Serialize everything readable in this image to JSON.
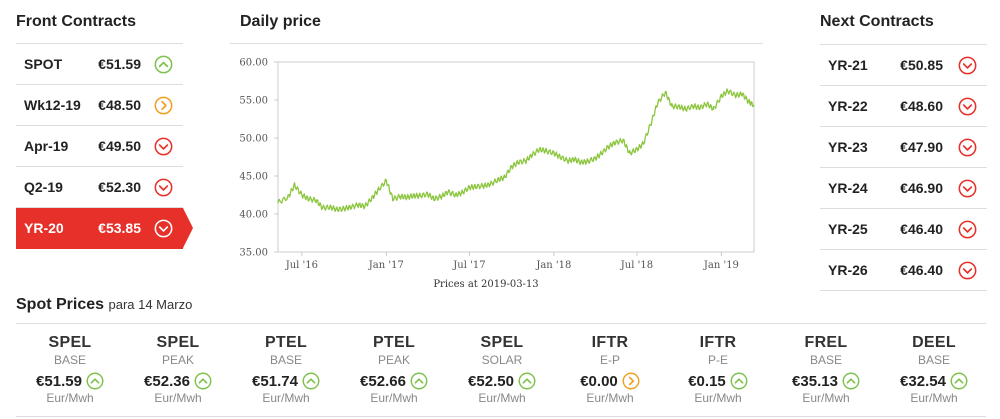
{
  "front": {
    "title": "Front Contracts",
    "items": [
      {
        "name": "SPOT",
        "price": "€51.59",
        "trend": "up-icon"
      },
      {
        "name": "Wk12-19",
        "price": "€48.50",
        "trend": "right-icon"
      },
      {
        "name": "Apr-19",
        "price": "€49.50",
        "trend": "down-icon"
      },
      {
        "name": "Q2-19",
        "price": "€52.30",
        "trend": "down-icon"
      },
      {
        "name": "YR-20",
        "price": "€53.85",
        "trend": "down-icon",
        "active": true
      }
    ]
  },
  "daily": {
    "title": "Daily price"
  },
  "next": {
    "title": "Next Contracts",
    "items": [
      {
        "name": "YR-21",
        "price": "€50.85",
        "trend": "down-icon"
      },
      {
        "name": "YR-22",
        "price": "€48.60",
        "trend": "down-icon"
      },
      {
        "name": "YR-23",
        "price": "€47.90",
        "trend": "down-icon"
      },
      {
        "name": "YR-24",
        "price": "€46.90",
        "trend": "down-icon"
      },
      {
        "name": "YR-25",
        "price": "€46.40",
        "trend": "down-icon"
      },
      {
        "name": "YR-26",
        "price": "€46.40",
        "trend": "down-icon"
      }
    ]
  },
  "spot": {
    "title": "Spot Prices",
    "subtitle": "para 14 Marzo",
    "items": [
      {
        "name": "SPEL",
        "type": "BASE",
        "price": "€51.59",
        "unit": "Eur/Mwh",
        "trend": "up-icon"
      },
      {
        "name": "SPEL",
        "type": "PEAK",
        "price": "€52.36",
        "unit": "Eur/Mwh",
        "trend": "up-icon"
      },
      {
        "name": "PTEL",
        "type": "BASE",
        "price": "€51.74",
        "unit": "Eur/Mwh",
        "trend": "up-icon"
      },
      {
        "name": "PTEL",
        "type": "PEAK",
        "price": "€52.66",
        "unit": "Eur/Mwh",
        "trend": "up-icon"
      },
      {
        "name": "SPEL",
        "type": "SOLAR",
        "price": "€52.50",
        "unit": "Eur/Mwh",
        "trend": "up-icon"
      },
      {
        "name": "IFTR",
        "type": "E-P",
        "price": "€0.00",
        "unit": "Eur/Mwh",
        "trend": "right-icon"
      },
      {
        "name": "IFTR",
        "type": "P-E",
        "price": "€0.15",
        "unit": "Eur/Mwh",
        "trend": "up-icon"
      },
      {
        "name": "FREL",
        "type": "BASE",
        "price": "€35.13",
        "unit": "Eur/Mwh",
        "trend": "up-icon"
      },
      {
        "name": "DEEL",
        "type": "BASE",
        "price": "€32.54",
        "unit": "Eur/Mwh",
        "trend": "up-icon"
      }
    ]
  },
  "colors": {
    "up": "#7dc24b",
    "right": "#f0a020",
    "down": "#e8302a",
    "line": "#8cc63f",
    "active": "#e8302a"
  },
  "chart_data": {
    "type": "line",
    "title": "Daily price",
    "xlabel": "Prices at 2019-03-13",
    "ylabel": "",
    "ylim": [
      35,
      60
    ],
    "yticks": [
      "60.00",
      "55.00",
      "50.00",
      "45.00",
      "40.00",
      "35.00"
    ],
    "xticks": [
      "Jul '16",
      "Jan '17",
      "Jul '17",
      "Jan '18",
      "Jul '18",
      "Jan '19"
    ],
    "series": [
      {
        "x": [
          "2016-05-10",
          "2016-06-01",
          "2016-06-15",
          "2016-07-01",
          "2016-07-15",
          "2016-08-01",
          "2016-08-15",
          "2016-09-01",
          "2016-09-15",
          "2016-10-01",
          "2016-10-15",
          "2016-11-01",
          "2016-11-15",
          "2016-12-01",
          "2016-12-15",
          "2017-01-01",
          "2017-01-15",
          "2017-02-01",
          "2017-02-15",
          "2017-03-01",
          "2017-03-15",
          "2017-04-01",
          "2017-04-15",
          "2017-05-01",
          "2017-05-15",
          "2017-06-01",
          "2017-06-15",
          "2017-07-01",
          "2017-07-15",
          "2017-08-01",
          "2017-08-15",
          "2017-09-01",
          "2017-09-15",
          "2017-10-01",
          "2017-10-15",
          "2017-11-01",
          "2017-11-15",
          "2017-12-01",
          "2017-12-15",
          "2018-01-01",
          "2018-01-15",
          "2018-02-01",
          "2018-02-15",
          "2018-03-01",
          "2018-03-15",
          "2018-04-01",
          "2018-04-15",
          "2018-05-01",
          "2018-05-15",
          "2018-06-01",
          "2018-06-15",
          "2018-07-01",
          "2018-07-15",
          "2018-08-01",
          "2018-08-15",
          "2018-09-01",
          "2018-09-15",
          "2018-10-01",
          "2018-10-15",
          "2018-11-01",
          "2018-11-15",
          "2018-12-01",
          "2018-12-15",
          "2019-01-01",
          "2019-01-15",
          "2019-02-01",
          "2019-02-15",
          "2019-03-01",
          "2019-03-13"
        ],
        "values": [
          41.5,
          42.2,
          43.8,
          42.5,
          42.0,
          41.8,
          40.8,
          40.9,
          40.6,
          40.7,
          40.9,
          41.2,
          41.0,
          42.1,
          43.2,
          44.4,
          42.0,
          42.3,
          42.2,
          42.4,
          42.4,
          42.6,
          42.0,
          42.3,
          42.9,
          42.5,
          42.8,
          43.5,
          43.6,
          43.7,
          43.9,
          44.5,
          44.8,
          46.2,
          46.8,
          47.0,
          47.8,
          48.5,
          48.3,
          48.0,
          47.5,
          47.0,
          47.2,
          46.8,
          46.9,
          47.3,
          48.0,
          48.9,
          49.4,
          49.7,
          48.0,
          48.5,
          49.3,
          52.0,
          54.6,
          56.0,
          54.2,
          54.1,
          53.8,
          54.2,
          54.0,
          54.5,
          53.8,
          55.5,
          56.2,
          55.6,
          55.8,
          54.8,
          54.3
        ]
      }
    ]
  }
}
